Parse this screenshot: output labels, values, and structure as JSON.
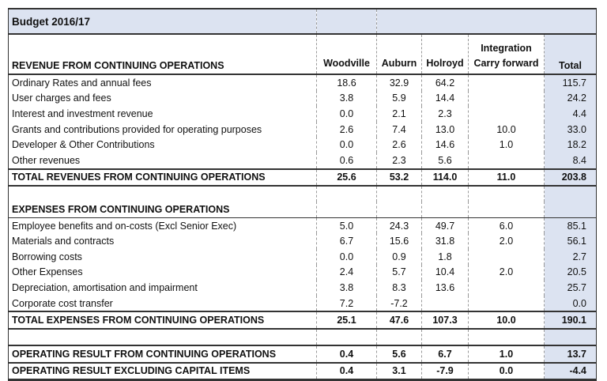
{
  "title": "Budget 2016/17",
  "header": {
    "section": "REVENUE FROM CONTINUING OPERATIONS",
    "columns": [
      "Woodville",
      "Auburn",
      "Holroyd",
      "Integration\nCarry forward",
      "Total"
    ]
  },
  "revenue_rows": [
    {
      "label": "Ordinary Rates and annual fees",
      "values": [
        "18.6",
        "32.9",
        "64.2",
        "",
        "115.7"
      ]
    },
    {
      "label": "User charges and fees",
      "values": [
        "3.8",
        "5.9",
        "14.4",
        "",
        "24.2"
      ]
    },
    {
      "label": "Interest and investment revenue",
      "values": [
        "0.0",
        "2.1",
        "2.3",
        "",
        "4.4"
      ]
    },
    {
      "label": "Grants and contributions provided for operating purposes",
      "values": [
        "2.6",
        "7.4",
        "13.0",
        "10.0",
        "33.0"
      ]
    },
    {
      "label": "Developer & Other Contributions",
      "values": [
        "0.0",
        "2.6",
        "14.6",
        "1.0",
        "18.2"
      ]
    },
    {
      "label": "Other revenues",
      "values": [
        "0.6",
        "2.3",
        "5.6",
        "",
        "8.4"
      ]
    }
  ],
  "revenue_total": {
    "label": "TOTAL REVENUES FROM CONTINUING OPERATIONS",
    "values": [
      "25.6",
      "53.2",
      "114.0",
      "11.0",
      "203.8"
    ]
  },
  "expenses_section": "EXPENSES FROM CONTINUING OPERATIONS",
  "expense_rows": [
    {
      "label": "Employee benefits and on-costs (Excl Senior Exec)",
      "values": [
        "5.0",
        "24.3",
        "49.7",
        "6.0",
        "85.1"
      ]
    },
    {
      "label": "Materials and contracts",
      "values": [
        "6.7",
        "15.6",
        "31.8",
        "2.0",
        "56.1"
      ]
    },
    {
      "label": "Borrowing costs",
      "values": [
        "0.0",
        "0.9",
        "1.8",
        "",
        "2.7"
      ]
    },
    {
      "label": "Other Expenses",
      "values": [
        "2.4",
        "5.7",
        "10.4",
        "2.0",
        "20.5"
      ]
    },
    {
      "label": "Depreciation, amortisation and impairment",
      "values": [
        "3.8",
        "8.3",
        "13.6",
        "",
        "25.7"
      ]
    },
    {
      "label": "Corporate cost transfer",
      "values": [
        "7.2",
        "-7.2",
        "",
        "",
        "0.0"
      ]
    }
  ],
  "expense_total": {
    "label": "TOTAL EXPENSES FROM CONTINUING OPERATIONS",
    "values": [
      "25.1",
      "47.6",
      "107.3",
      "10.0",
      "190.1"
    ]
  },
  "operating_result": {
    "label": "OPERATING RESULT FROM CONTINUING OPERATIONS",
    "values": [
      "0.4",
      "5.6",
      "6.7",
      "1.0",
      "13.7"
    ]
  },
  "operating_result_excl": {
    "label": "OPERATING RESULT EXCLUDING CAPITAL ITEMS",
    "values": [
      "0.4",
      "3.1",
      "-7.9",
      "0.0",
      "-4.4"
    ]
  }
}
